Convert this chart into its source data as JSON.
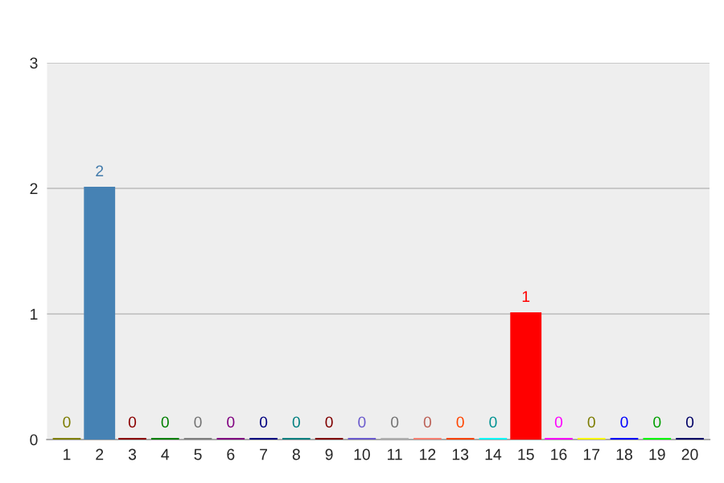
{
  "chart_data": {
    "type": "bar",
    "categories": [
      "1",
      "2",
      "3",
      "4",
      "5",
      "6",
      "7",
      "8",
      "9",
      "10",
      "11",
      "12",
      "13",
      "14",
      "15",
      "16",
      "17",
      "18",
      "19",
      "20"
    ],
    "values": [
      0,
      2,
      0,
      0,
      0,
      0,
      0,
      0,
      0,
      0,
      0,
      0,
      0,
      0,
      1,
      0,
      0,
      0,
      0,
      0
    ],
    "colors": [
      "#808000",
      "#4682b4",
      "#8b0000",
      "#008000",
      "#808080",
      "#800080",
      "#000080",
      "#008080",
      "#800000",
      "#6a5acd",
      "#b0b0b0",
      "#fa8072",
      "#ff4500",
      "#00ffff",
      "#ff0000",
      "#ff00ff",
      "#ffff00",
      "#0000ff",
      "#00ff00",
      "#000066"
    ],
    "ylim": [
      0,
      3
    ],
    "yticks": [
      0,
      1,
      2,
      3
    ],
    "grid": "y",
    "data_labels": true
  }
}
